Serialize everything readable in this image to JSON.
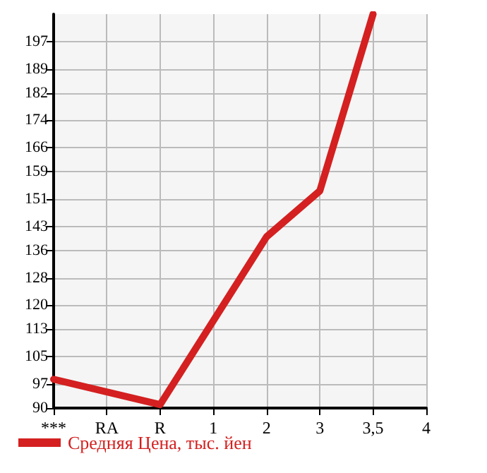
{
  "chart_data": {
    "type": "line",
    "categories": [
      "***",
      "RA",
      "R",
      "1",
      "2",
      "3",
      "3,5",
      "4"
    ],
    "series": [
      {
        "name": "Средняя Цена, тыс. йен",
        "color": "#d42020",
        "values": [
          98.4,
          null,
          91,
          null,
          140,
          153.4,
          205,
          null
        ]
      }
    ],
    "ylim": [
      90,
      205
    ],
    "yticks": [
      90,
      97,
      105,
      113,
      120,
      128,
      136,
      143,
      151,
      159,
      166,
      174,
      182,
      189,
      197
    ],
    "grid": true,
    "legend": "bottom left",
    "marker": "none",
    "line_style": "solid"
  }
}
